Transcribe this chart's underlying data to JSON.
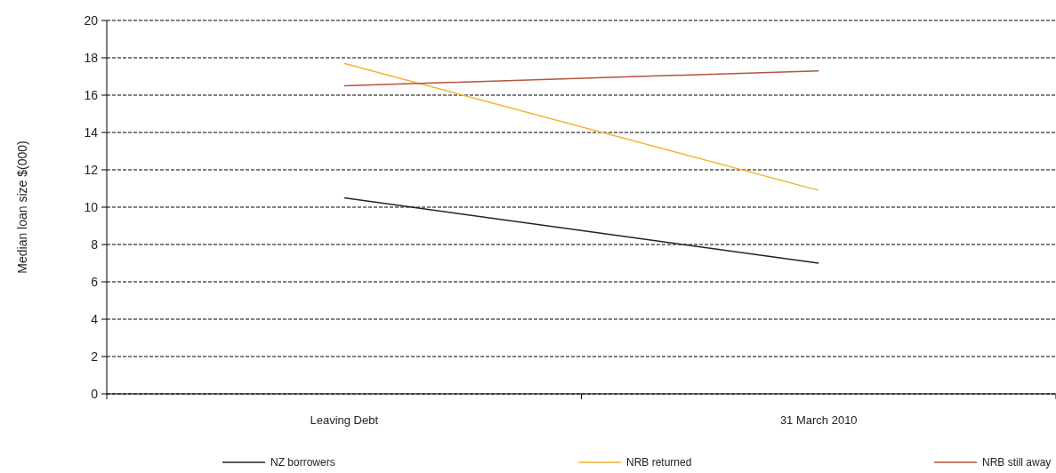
{
  "chart_data": {
    "type": "line",
    "ylabel": "Median loan size $(000)",
    "categories": [
      "Leaving Debt",
      "31 March 2010"
    ],
    "series": [
      {
        "name": "NZ borrowers",
        "color": "#222222",
        "values": [
          10.5,
          7.0
        ]
      },
      {
        "name": "NRB returned",
        "color": "#f2b234",
        "values": [
          17.7,
          10.9
        ]
      },
      {
        "name": "NRB still away",
        "color": "#b5533a",
        "values": [
          16.5,
          17.3
        ]
      }
    ],
    "ylim": [
      0,
      20
    ],
    "yticks": [
      0,
      2,
      4,
      6,
      8,
      10,
      12,
      14,
      16,
      18,
      20
    ],
    "grid": "y",
    "legend": "bottom",
    "marker": "none",
    "line_style": "solid"
  }
}
